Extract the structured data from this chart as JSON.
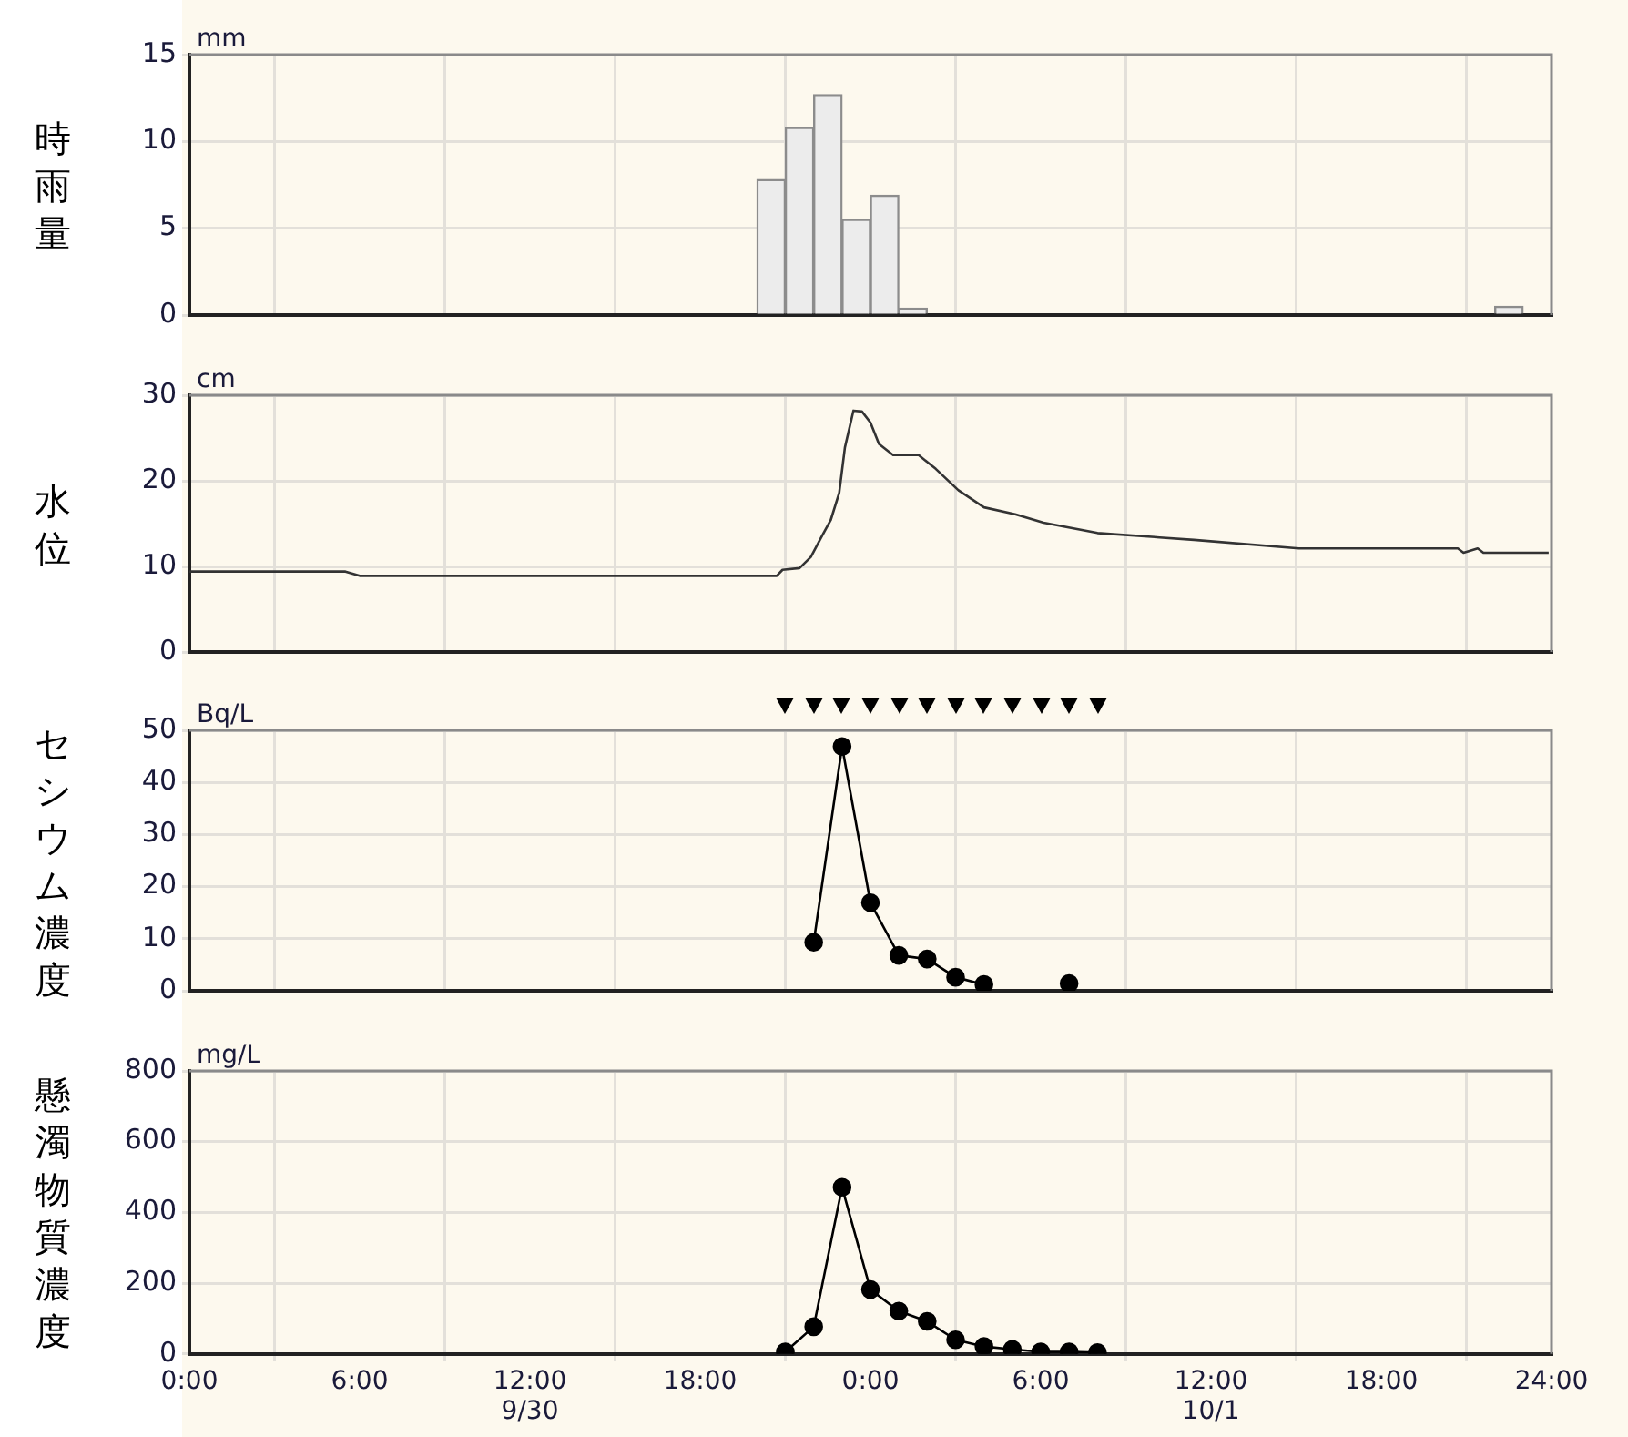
{
  "chart_data": [
    {
      "type": "bar",
      "ylabel": "時雨量",
      "annotations": [
        "mm"
      ],
      "x": [
        "--09-30T20:30",
        "--09-30T21:30",
        "--09-30T22:30",
        "--09-30T23:30",
        "--10-01T00:30",
        "--10-01T01:30",
        "--10-01T22:30"
      ],
      "values": [
        7.8,
        10.8,
        12.7,
        5.5,
        6.9,
        0.4,
        0.5
      ],
      "color": "#ececec",
      "xlim": [
        "--09-30T00:00",
        "--10-02T00:00"
      ],
      "xticks": [
        "--09-30T00:00",
        "--09-30T06:00",
        "--09-30T12:00",
        "--09-30T18:00",
        "--10-01T00:00",
        "--10-01T06:00",
        "--10-01T12:00",
        "--10-01T18:00",
        "--10-02T00:00"
      ],
      "ylim": [
        0,
        15
      ],
      "yticks": [
        0,
        5,
        10,
        15
      ],
      "grid": true,
      "tick_labels": "y"
    },
    {
      "type": "line",
      "ylabel": "水位",
      "annotations": [
        "cm"
      ],
      "x": [
        "--09-30T00:00",
        "--09-30T05:30",
        "--09-30T06:00",
        "--09-30T17:42",
        "--09-30T20:42",
        "--09-30T20:54",
        "--09-30T21:30",
        "--09-30T21:54",
        "--09-30T22:18",
        "--09-30T22:36",
        "--09-30T22:54",
        "--09-30T23:06",
        "--09-30T23:24",
        "--09-30T23:42",
        "--10-01T00:00",
        "--10-01T00:18",
        "--10-01T00:48",
        "--10-01T01:42",
        "--10-01T02:18",
        "--10-01T03:06",
        "--10-01T04:00",
        "--10-01T05:06",
        "--10-01T06:06",
        "--10-01T08:00",
        "--10-01T11:24",
        "--10-01T15:06",
        "--10-01T20:42",
        "--10-01T20:54",
        "--10-01T21:24",
        "--10-01T21:36",
        "--10-01T23:54"
      ],
      "values": [
        9.4,
        9.4,
        8.9,
        8.9,
        8.9,
        9.6,
        9.8,
        11.1,
        13.6,
        15.4,
        18.6,
        23.9,
        28.2,
        28.1,
        26.8,
        24.3,
        23.0,
        23.0,
        21.4,
        18.9,
        16.9,
        16.1,
        15.1,
        13.9,
        13.1,
        12.1,
        12.1,
        11.6,
        12.1,
        11.6,
        11.6
      ],
      "color": "#333333",
      "xlim": [
        "--09-30T00:00",
        "--10-02T00:00"
      ],
      "xticks": [
        "--09-30T00:00",
        "--09-30T06:00",
        "--09-30T12:00",
        "--09-30T18:00",
        "--10-01T00:00",
        "--10-01T06:00",
        "--10-01T12:00",
        "--10-01T18:00",
        "--10-02T00:00"
      ],
      "ylim": [
        0,
        30
      ],
      "yticks": [
        0,
        10,
        20,
        30
      ],
      "grid": true,
      "tick_labels": "y"
    },
    {
      "type": "line",
      "ylabel": "セシウム濃度",
      "annotations": [
        "Bq/L"
      ],
      "x": [
        "--09-30T22:00",
        "--09-30T23:00",
        "--10-01T00:00",
        "--10-01T01:00",
        "--10-01T02:00",
        "--10-01T03:00",
        "--10-01T04:00",
        "--10-01T05:00",
        "--10-01T06:00",
        "--10-01T07:00"
      ],
      "values": [
        9.3,
        46.9,
        16.9,
        6.8,
        6.1,
        2.6,
        1.2,
        null,
        null,
        1.4
      ],
      "color": "#000000",
      "marker": "circle",
      "xlim": [
        "--09-30T00:00",
        "--10-02T00:00"
      ],
      "xticks": [
        "--09-30T00:00",
        "--09-30T06:00",
        "--09-30T12:00",
        "--09-30T18:00",
        "--10-01T00:00",
        "--10-01T06:00",
        "--10-01T12:00",
        "--10-01T18:00",
        "--10-02T00:00"
      ],
      "ylim": [
        0,
        50
      ],
      "yticks": [
        0,
        10,
        20,
        30,
        40,
        50
      ],
      "grid": true,
      "tick_labels": "y"
    },
    {
      "type": "line",
      "ylabel": "懸濁物質濃度",
      "annotations": [
        "mg/L"
      ],
      "x": [
        "--09-30T21:00",
        "--09-30T22:00",
        "--09-30T23:00",
        "--10-01T00:00",
        "--10-01T01:00",
        "--10-01T02:00",
        "--10-01T03:00",
        "--10-01T04:00",
        "--10-01T05:00",
        "--10-01T06:00",
        "--10-01T07:00",
        "--10-01T08:00"
      ],
      "values": [
        6,
        77,
        471,
        182,
        121,
        92,
        40,
        21,
        13,
        6,
        6,
        4
      ],
      "color": "#000000",
      "marker": "circle",
      "xlim": [
        "--09-30T00:00",
        "--10-02T00:00"
      ],
      "xticks": [
        {
          "value": "--09-30T00:00",
          "label": "0:00"
        },
        {
          "value": "--09-30T06:00",
          "label": "6:00"
        },
        {
          "value": "--09-30T12:00",
          "label": "12:00\n9/30"
        },
        {
          "value": "--09-30T18:00",
          "label": "18:00"
        },
        {
          "value": "--10-01T00:00",
          "label": "0:00"
        },
        {
          "value": "--10-01T06:00",
          "label": "6:00"
        },
        {
          "value": "--10-01T12:00",
          "label": "12:00\n10/1"
        },
        {
          "value": "--10-01T18:00",
          "label": "18:00"
        },
        {
          "value": "--10-02T00:00",
          "label": "24:00"
        }
      ],
      "ylim": [
        0,
        800
      ],
      "yticks": [
        0,
        200,
        400,
        600,
        800
      ],
      "grid": true
    }
  ]
}
